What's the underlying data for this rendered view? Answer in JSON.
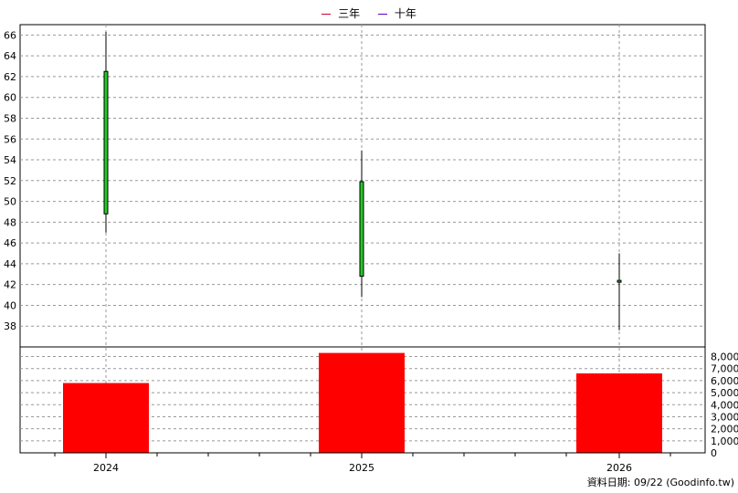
{
  "legend": [
    {
      "label": "三年",
      "color": "#cc0033"
    },
    {
      "label": "十年",
      "color": "#5500cc"
    }
  ],
  "footer": "資料日期: 09/22  (Goodinfo.tw)",
  "chart_data": {
    "type": "candlestick+bar",
    "categories": [
      "2024",
      "2025",
      "2026"
    ],
    "price_axis": {
      "ylim": [
        36,
        67
      ],
      "ticks": [
        38,
        40,
        42,
        44,
        46,
        48,
        50,
        52,
        54,
        56,
        58,
        60,
        62,
        64,
        66
      ]
    },
    "candles": [
      {
        "x": "2024",
        "open": 48.8,
        "close": 62.5,
        "high": 66.3,
        "low": 47.0,
        "color": "#22cc22"
      },
      {
        "x": "2025",
        "open": 42.8,
        "close": 51.9,
        "high": 54.9,
        "low": 40.8,
        "color": "#22cc22"
      },
      {
        "x": "2026",
        "open": 42.3,
        "close": 42.4,
        "high": 45.0,
        "low": 37.6,
        "color": "#22cc22"
      }
    ],
    "volume_axis": {
      "ylim": [
        0,
        8800
      ],
      "ticks": [
        0,
        1000,
        2000,
        3000,
        4000,
        5000,
        6000,
        7000,
        8000
      ],
      "tick_labels": [
        "0",
        "1,000",
        "2,000",
        "3,000",
        "4,000",
        "5,000",
        "6,000",
        "7,000",
        "8,000"
      ]
    },
    "volume": [
      {
        "x": "2024",
        "value": 5800,
        "color": "#ff0000"
      },
      {
        "x": "2025",
        "value": 8300,
        "color": "#ff0000"
      },
      {
        "x": "2026",
        "value": 6600,
        "color": "#ff0000"
      }
    ],
    "grid": true
  }
}
